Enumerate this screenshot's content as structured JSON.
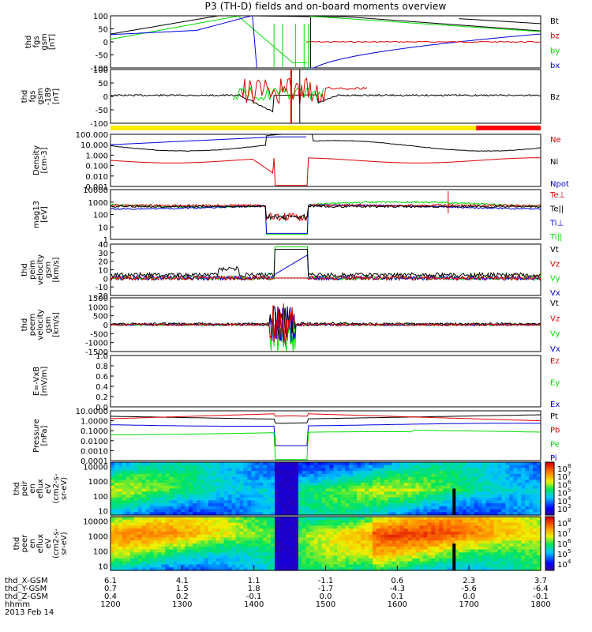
{
  "title": "P3 (TH-D) fields and on-board moments overview",
  "colors": {
    "black": "#000000",
    "red": "#dd0000",
    "green": "#00dd00",
    "blue": "#0000dd",
    "yellow": "#ffee00",
    "bar_red": "#ff0000"
  },
  "chart_data": [
    {
      "id": "fgs",
      "type": "line",
      "ylabel": [
        "thd",
        "fgs",
        "gsm",
        "[nT]"
      ],
      "ylim": [
        -100,
        100
      ],
      "ticks": [
        "100",
        "50",
        "0",
        "-50",
        "-100"
      ],
      "legend": [
        {
          "label": "Bt",
          "color": "#000000"
        },
        {
          "label": "bz",
          "color": "#dd0000"
        },
        {
          "label": "by",
          "color": "#00dd00"
        },
        {
          "label": "bx",
          "color": "#0000dd"
        }
      ]
    },
    {
      "id": "fgh",
      "type": "line",
      "ylabel": [
        "thd",
        "fgs",
        "gsm",
        "-189",
        "[nT]"
      ],
      "ylim": [
        -120,
        100
      ],
      "ticks": [
        "100",
        "50",
        "0",
        "-50",
        "-100"
      ],
      "legend": [
        {
          "label": "Bz",
          "color": "#000000"
        }
      ],
      "mode_bar": [
        {
          "from": "1200",
          "to": "1710",
          "color": "#ffee00"
        },
        {
          "from": "1710",
          "to": "1800",
          "color": "#ff0000"
        }
      ]
    },
    {
      "id": "density",
      "type": "line",
      "ylabel": [
        "Density",
        "[cm-3]"
      ],
      "scale": "log",
      "ticks": [
        "100.000",
        "10.000",
        "1.000",
        "0.100",
        "0.010",
        "0.001"
      ],
      "legend": [
        {
          "label": "Ne",
          "color": "#dd0000"
        },
        {
          "label": "Ni",
          "color": "#000000"
        },
        {
          "label": "Npot",
          "color": "#0000dd"
        }
      ]
    },
    {
      "id": "temp",
      "type": "line",
      "ylabel": [
        "mag13",
        "[eV]"
      ],
      "scale": "log",
      "ticks": [
        "10000",
        "1000",
        "100",
        "10",
        "1"
      ],
      "legend": [
        {
          "label": "Te⊥",
          "color": "#dd0000"
        },
        {
          "label": "Te||",
          "color": "#000000"
        },
        {
          "label": "Ti⊥",
          "color": "#0000dd"
        },
        {
          "label": "Ti||",
          "color": "#00dd00"
        }
      ]
    },
    {
      "id": "peim",
      "type": "line",
      "ylabel": [
        "thd",
        "peim",
        "velocity",
        "gsm",
        "[km/s]"
      ],
      "ylim": [
        -20,
        40
      ],
      "ticks": [
        "40",
        "30",
        "20",
        "10",
        "0",
        "-10",
        "-20"
      ],
      "legend": [
        {
          "label": "Vt",
          "color": "#000000"
        },
        {
          "label": "Vz",
          "color": "#dd0000"
        },
        {
          "label": "Vy",
          "color": "#00dd00"
        },
        {
          "label": "Vx",
          "color": "#0000dd"
        }
      ]
    },
    {
      "id": "peem",
      "type": "line",
      "ylabel": [
        "thd",
        "peem",
        "velocity",
        "gsm",
        "[km/s]"
      ],
      "ylim": [
        -1500,
        1500
      ],
      "ticks": [
        "1500",
        "1000",
        "500",
        "0",
        "-500",
        "-1000",
        "-1500"
      ],
      "legend": [
        {
          "label": "Vt",
          "color": "#000000"
        },
        {
          "label": "Vz",
          "color": "#dd0000"
        },
        {
          "label": "Vy",
          "color": "#00dd00"
        },
        {
          "label": "Vx",
          "color": "#0000dd"
        }
      ]
    },
    {
      "id": "efield",
      "type": "line",
      "ylabel": [
        "E=-VxB",
        "[mV/m]"
      ],
      "ylim": [
        0,
        1
      ],
      "ticks": [
        "1.0",
        "0.8",
        "0.6",
        "0.4",
        "0.2",
        "0.0"
      ],
      "legend": [
        {
          "label": "Ez",
          "color": "#dd0000"
        },
        {
          "label": "Ey",
          "color": "#00dd00"
        },
        {
          "label": "Ex",
          "color": "#0000dd"
        }
      ]
    },
    {
      "id": "pressure",
      "type": "line",
      "ylabel": [
        "Pressure",
        "[nPa]"
      ],
      "scale": "log",
      "ticks": [
        "10.0000",
        "1.0000",
        "0.1000",
        "0.0100",
        "0.0010",
        "0.0001"
      ],
      "legend": [
        {
          "label": "Pt",
          "color": "#000000"
        },
        {
          "label": "Pb",
          "color": "#dd0000"
        },
        {
          "label": "Pe",
          "color": "#00dd00"
        },
        {
          "label": "Pi",
          "color": "#0000dd"
        }
      ]
    },
    {
      "id": "peir",
      "type": "heatmap",
      "ylabel": [
        "thd",
        "peir",
        "en",
        "eflux",
        "eV",
        "(cm2-s-",
        "sr-eV)"
      ],
      "scale": "log",
      "ticks": [
        "10000",
        "1000",
        "100",
        "10"
      ],
      "colorbar": {
        "labels": [
          "10",
          "10",
          "10",
          "10",
          "10",
          "10"
        ],
        "exponents": [
          "8",
          "7",
          "6",
          "5",
          "4",
          "3"
        ]
      }
    },
    {
      "id": "peer",
      "type": "heatmap",
      "ylabel": [
        "thd",
        "peer",
        "en",
        "eflux",
        "eV",
        "(cm2-s-",
        "sr-eV)"
      ],
      "scale": "log",
      "ticks": [
        "10000",
        "1000",
        "100",
        "10"
      ],
      "colorbar": {
        "labels": [
          "10",
          "10",
          "10",
          "10",
          "10"
        ],
        "exponents": [
          "8",
          "7",
          "6",
          "5",
          "4"
        ]
      }
    }
  ],
  "x_axis": {
    "rows": [
      {
        "label": "thd_X-GSM",
        "values": [
          "6.1",
          "4.1",
          "1.1",
          "-1.1",
          "0.6",
          "2.3",
          "3.7"
        ]
      },
      {
        "label": "thd_Y-GSM",
        "values": [
          "0.7",
          "1.5",
          "1.8",
          "-1.7",
          "-4.3",
          "-5.6",
          "-6.4"
        ]
      },
      {
        "label": "thd_Z-GSM",
        "values": [
          "0.4",
          "0.2",
          "-0.1",
          "0.0",
          "0.1",
          "0.0",
          "-0.1"
        ]
      },
      {
        "label": "hhmm",
        "values": [
          "1200",
          "1300",
          "1400",
          "1500",
          "1600",
          "1700",
          "1800"
        ]
      }
    ],
    "date": "2013 Feb 14"
  }
}
